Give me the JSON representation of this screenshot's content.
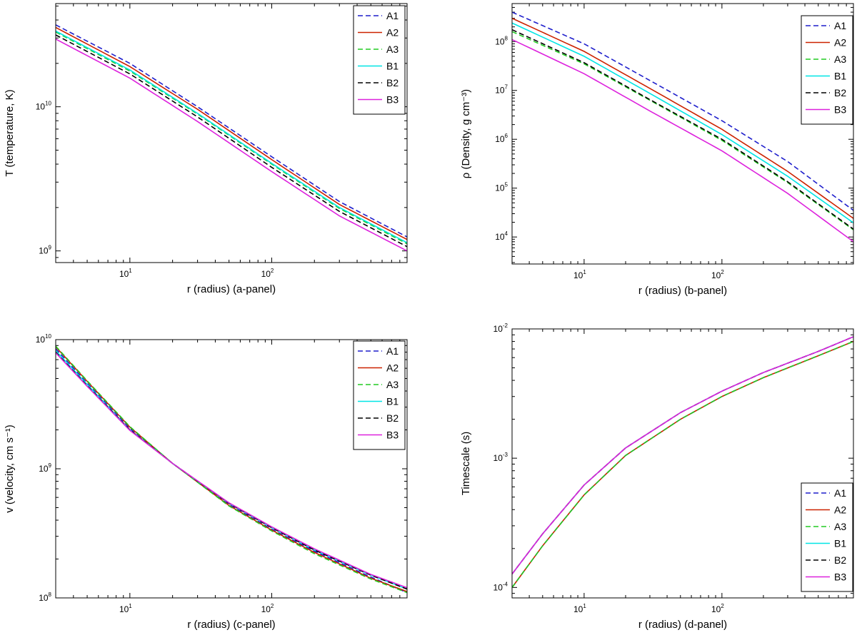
{
  "chart_data": [
    {
      "type": "line",
      "xlabel": "r (radius)   (a-panel)",
      "ylabel": "T (temperature, K)",
      "xscale": "log",
      "yscale": "log",
      "xlim": [
        3,
        900
      ],
      "ylim": [
        830000000.0,
        52000000000.0
      ],
      "xticks": [
        {
          "label": "10",
          "exp": "1",
          "value": 10
        },
        {
          "label": "10",
          "exp": "2",
          "value": 100
        }
      ],
      "yticks": [
        {
          "label": "10",
          "exp": "9",
          "value": 1000000000.0
        },
        {
          "label": "10",
          "exp": "10",
          "value": 10000000000.0
        }
      ],
      "legend": "top-right",
      "series": [
        {
          "name": "A1",
          "color": "#1f1fcc",
          "dash": "dashed",
          "x": [
            3,
            10,
            30,
            100,
            300,
            900
          ],
          "y": [
            37000000000.0,
            20000000000.0,
            10000000000.0,
            4500000000.0,
            2200000000.0,
            1250000000.0
          ]
        },
        {
          "name": "A2",
          "color": "#cc2200",
          "dash": "solid",
          "x": [
            3,
            10,
            30,
            100,
            300,
            900
          ],
          "y": [
            35500000000.0,
            19000000000.0,
            9600000000.0,
            4300000000.0,
            2100000000.0,
            1200000000.0
          ]
        },
        {
          "name": "A3",
          "color": "#22cc22",
          "dash": "dashed",
          "x": [
            3,
            10,
            30,
            100,
            300,
            900
          ],
          "y": [
            33000000000.0,
            17700000000.0,
            8900000000.0,
            4000000000.0,
            1970000000.0,
            1120000000.0
          ]
        },
        {
          "name": "B1",
          "color": "#00e5e5",
          "dash": "solid",
          "x": [
            3,
            10,
            30,
            100,
            300,
            900
          ],
          "y": [
            33500000000.0,
            18000000000.0,
            9000000000.0,
            4050000000.0,
            2000000000.0,
            1140000000.0
          ]
        },
        {
          "name": "B2",
          "color": "#000000",
          "dash": "dashed",
          "x": [
            3,
            10,
            30,
            100,
            300,
            900
          ],
          "y": [
            31500000000.0,
            16900000000.0,
            8500000000.0,
            3800000000.0,
            1880000000.0,
            1070000000.0
          ]
        },
        {
          "name": "B3",
          "color": "#dd22dd",
          "dash": "solid",
          "x": [
            3,
            10,
            30,
            100,
            300,
            900
          ],
          "y": [
            29500000000.0,
            15800000000.0,
            7900000000.0,
            3550000000.0,
            1750000000.0,
            1000000000.0
          ]
        }
      ]
    },
    {
      "type": "line",
      "xlabel": "r (radius)   (b-panel)",
      "ylabel": "ρ (Density, g cm⁻³)",
      "xscale": "log",
      "yscale": "log",
      "xlim": [
        3,
        900
      ],
      "ylim": [
        2800.0,
        600000000.0
      ],
      "xticks": [
        {
          "label": "10",
          "exp": "1",
          "value": 10
        },
        {
          "label": "10",
          "exp": "2",
          "value": 100
        }
      ],
      "yticks": [
        {
          "label": "10",
          "exp": "4",
          "value": 10000.0
        },
        {
          "label": "10",
          "exp": "5",
          "value": 100000.0
        },
        {
          "label": "10",
          "exp": "6",
          "value": 1000000.0
        },
        {
          "label": "10",
          "exp": "7",
          "value": 10000000.0
        },
        {
          "label": "10",
          "exp": "8",
          "value": 100000000.0
        }
      ],
      "legend": "top-right",
      "series": [
        {
          "name": "A1",
          "color": "#1f1fcc",
          "dash": "dashed",
          "x": [
            3,
            10,
            30,
            100,
            300,
            900
          ],
          "y": [
            400000000.0,
            90000000.0,
            16000000.0,
            2400000.0,
            350000.0,
            35000.0
          ]
        },
        {
          "name": "A2",
          "color": "#cc2200",
          "dash": "solid",
          "x": [
            3,
            10,
            30,
            100,
            300,
            900
          ],
          "y": [
            300000000.0,
            63000000.0,
            11000000.0,
            1600000.0,
            220000.0,
            24000.0
          ]
        },
        {
          "name": "A3",
          "color": "#22cc22",
          "dash": "dashed",
          "x": [
            3,
            10,
            30,
            100,
            300,
            900
          ],
          "y": [
            160000000.0,
            35000000.0,
            6300000.0,
            950000.0,
            130000.0,
            14000.0
          ]
        },
        {
          "name": "B1",
          "color": "#00e5e5",
          "dash": "solid",
          "x": [
            3,
            10,
            30,
            100,
            300,
            900
          ],
          "y": [
            240000000.0,
            50000000.0,
            8700000.0,
            1250000.0,
            175000.0,
            19500.0
          ]
        },
        {
          "name": "B2",
          "color": "#000000",
          "dash": "dashed",
          "x": [
            3,
            10,
            30,
            100,
            300,
            900
          ],
          "y": [
            175000000.0,
            37000000.0,
            6500000.0,
            1000000.0,
            135000.0,
            14500.0
          ]
        },
        {
          "name": "B3",
          "color": "#dd22dd",
          "dash": "solid",
          "x": [
            3,
            10,
            30,
            100,
            300,
            900
          ],
          "y": [
            110000000.0,
            22000000.0,
            3800000.0,
            580000.0,
            78000.0,
            8000.0
          ]
        }
      ]
    },
    {
      "type": "line",
      "xlabel": "r (radius)   (c-panel)",
      "ylabel": "v (velocity, cm s⁻¹)",
      "xscale": "log",
      "yscale": "log",
      "xlim": [
        3,
        900
      ],
      "ylim": [
        100000000.0,
        10000000000.0
      ],
      "xticks": [
        {
          "label": "10",
          "exp": "1",
          "value": 10
        },
        {
          "label": "10",
          "exp": "2",
          "value": 100
        }
      ],
      "yticks": [
        {
          "label": "10",
          "exp": "8",
          "value": 100000000.0
        },
        {
          "label": "10",
          "exp": "9",
          "value": 1000000000.0
        },
        {
          "label": "10",
          "exp": "10",
          "value": 10000000000.0
        }
      ],
      "legend": "top-right",
      "series": [
        {
          "name": "A1",
          "color": "#1f1fcc",
          "dash": "dashed",
          "x": [
            3,
            5,
            10,
            20,
            50,
            100,
            200,
            500,
            900
          ],
          "y": [
            8500000000.0,
            4600000000.0,
            2050000000.0,
            1100000000.0,
            530000000.0,
            340000000.0,
            230000000.0,
            145000000.0,
            110000000.0
          ]
        },
        {
          "name": "A2",
          "color": "#cc2200",
          "dash": "solid",
          "x": [
            3,
            5,
            10,
            20,
            50,
            100,
            200,
            500,
            900
          ],
          "y": [
            8800000000.0,
            4750000000.0,
            2100000000.0,
            1100000000.0,
            520000000.0,
            335000000.0,
            225000000.0,
            142000000.0,
            112000000.0
          ]
        },
        {
          "name": "A3",
          "color": "#22cc22",
          "dash": "dashed",
          "x": [
            3,
            5,
            10,
            20,
            50,
            100,
            200,
            500,
            900
          ],
          "y": [
            8900000000.0,
            4800000000.0,
            2120000000.0,
            1100000000.0,
            515000000.0,
            330000000.0,
            220000000.0,
            140000000.0,
            110000000.0
          ]
        },
        {
          "name": "B1",
          "color": "#00e5e5",
          "dash": "solid",
          "x": [
            3,
            5,
            10,
            20,
            50,
            100,
            200,
            500,
            900
          ],
          "y": [
            8200000000.0,
            4500000000.0,
            2000000000.0,
            1100000000.0,
            540000000.0,
            350000000.0,
            235000000.0,
            150000000.0,
            117000000.0
          ]
        },
        {
          "name": "B2",
          "color": "#000000",
          "dash": "dashed",
          "x": [
            3,
            5,
            10,
            20,
            50,
            100,
            200,
            500,
            900
          ],
          "y": [
            8000000000.0,
            4400000000.0,
            2000000000.0,
            1100000000.0,
            540000000.0,
            350000000.0,
            235000000.0,
            150000000.0,
            117000000.0
          ]
        },
        {
          "name": "B3",
          "color": "#dd22dd",
          "dash": "solid",
          "x": [
            3,
            5,
            10,
            20,
            50,
            100,
            200,
            500,
            900
          ],
          "y": [
            7900000000.0,
            4350000000.0,
            1980000000.0,
            1100000000.0,
            545000000.0,
            355000000.0,
            240000000.0,
            152000000.0,
            120000000.0
          ]
        }
      ]
    },
    {
      "type": "line",
      "xlabel": "r (radius)   (d-panel)",
      "ylabel": "Timescale (s)",
      "xscale": "log",
      "yscale": "log",
      "xlim": [
        3,
        900
      ],
      "ylim": [
        8.3e-05,
        0.01
      ],
      "xticks": [
        {
          "label": "10",
          "exp": "1",
          "value": 10
        },
        {
          "label": "10",
          "exp": "2",
          "value": 100
        }
      ],
      "yticks": [
        {
          "label": "10",
          "exp": "-4",
          "value": 0.0001
        },
        {
          "label": "10",
          "exp": "-3",
          "value": 0.001
        },
        {
          "label": "10",
          "exp": "-2",
          "value": 0.01
        }
      ],
      "legend": "bottom-right",
      "series": [
        {
          "name": "A1",
          "color": "#1f1fcc",
          "dash": "dashed",
          "x": [
            3,
            5,
            10,
            20,
            50,
            100,
            200,
            500,
            900
          ],
          "y": [
            0.0001,
            0.00021,
            0.00052,
            0.00105,
            0.002,
            0.003,
            0.0042,
            0.0062,
            0.008
          ]
        },
        {
          "name": "A2",
          "color": "#cc2200",
          "dash": "solid",
          "x": [
            3,
            5,
            10,
            20,
            50,
            100,
            200,
            500,
            900
          ],
          "y": [
            0.0001,
            0.00021,
            0.00052,
            0.00105,
            0.002,
            0.003,
            0.0042,
            0.0062,
            0.008
          ]
        },
        {
          "name": "A3",
          "color": "#22cc22",
          "dash": "dashed",
          "x": [
            3,
            5,
            10,
            20,
            50,
            100,
            200,
            500,
            900
          ],
          "y": [
            0.0001,
            0.00021,
            0.00052,
            0.00105,
            0.002,
            0.003,
            0.0042,
            0.0062,
            0.008
          ]
        },
        {
          "name": "B1",
          "color": "#00e5e5",
          "dash": "solid",
          "x": [
            3,
            5,
            10,
            20,
            50,
            100,
            200,
            500,
            900
          ],
          "y": [
            0.000127,
            0.00026,
            0.00062,
            0.0012,
            0.00225,
            0.0033,
            0.0046,
            0.0067,
            0.0087
          ]
        },
        {
          "name": "B2",
          "color": "#000000",
          "dash": "dashed",
          "x": [
            3,
            5,
            10,
            20,
            50,
            100,
            200,
            500,
            900
          ],
          "y": [
            0.000127,
            0.00026,
            0.00062,
            0.0012,
            0.00225,
            0.0033,
            0.0046,
            0.0067,
            0.0087
          ]
        },
        {
          "name": "B3",
          "color": "#dd22dd",
          "dash": "solid",
          "x": [
            3,
            5,
            10,
            20,
            50,
            100,
            200,
            500,
            900
          ],
          "y": [
            0.000127,
            0.00026,
            0.00062,
            0.0012,
            0.00225,
            0.0033,
            0.0046,
            0.0067,
            0.0087
          ]
        }
      ]
    }
  ]
}
